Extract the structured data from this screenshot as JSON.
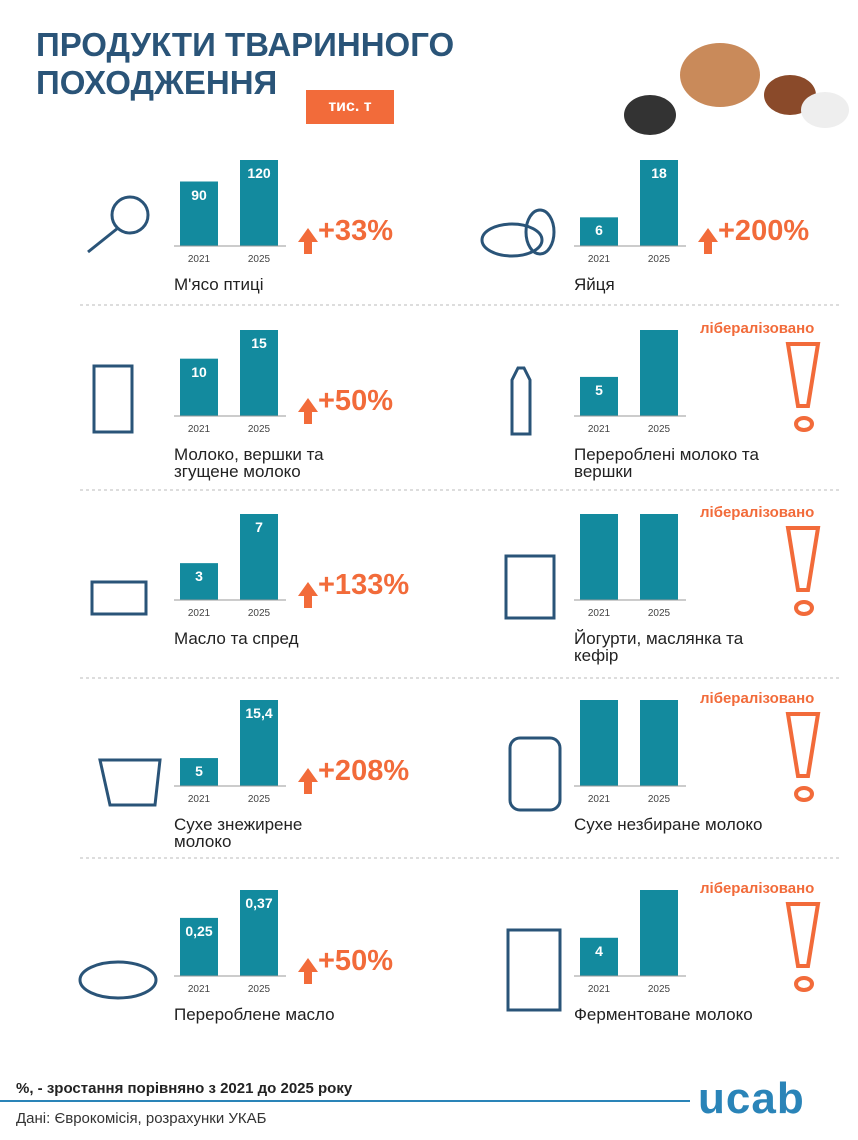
{
  "header": {
    "title": "ПРОДУКТИ ТВАРИННОГО ПОХОДЖЕННЯ",
    "unit": "тис. т"
  },
  "chart_data": [
    {
      "type": "bar",
      "title": "М'ясо птиці",
      "categories": [
        "2021",
        "2025"
      ],
      "values": [
        90,
        120
      ],
      "value_labels": [
        "90",
        "120"
      ],
      "annotation": "+33%",
      "color": "#138a9e"
    },
    {
      "type": "bar",
      "title": "Яйця",
      "categories": [
        "2021",
        "2025"
      ],
      "values": [
        6,
        18
      ],
      "value_labels": [
        "6",
        "18"
      ],
      "annotation": "+200%",
      "color": "#138a9e"
    },
    {
      "type": "bar",
      "title": "Молоко, вершки та згущене молоко",
      "categories": [
        "2021",
        "2025"
      ],
      "values": [
        10,
        15
      ],
      "value_labels": [
        "10",
        "15"
      ],
      "annotation": "+50%",
      "color": "#138a9e"
    },
    {
      "type": "bar",
      "title": "Перероблені молоко та вершки",
      "categories": [
        "2021",
        "2025"
      ],
      "values": [
        5,
        11
      ],
      "value_labels": [
        "5",
        null
      ],
      "annotation": "лібералізовано",
      "color": "#138a9e"
    },
    {
      "type": "bar",
      "title": "Масло та спред",
      "categories": [
        "2021",
        "2025"
      ],
      "values": [
        3,
        7
      ],
      "value_labels": [
        "3",
        "7"
      ],
      "annotation": "+133%",
      "color": "#138a9e"
    },
    {
      "type": "bar",
      "title": "Йогурти, маслянка та кефір",
      "categories": [
        "2021",
        "2025"
      ],
      "values": [
        null,
        null
      ],
      "value_labels": [
        null,
        null
      ],
      "annotation": "лібералізовано",
      "color": "#138a9e"
    },
    {
      "type": "bar",
      "title": "Сухе знежирене молоко",
      "categories": [
        "2021",
        "2025"
      ],
      "values": [
        5,
        15.4
      ],
      "value_labels": [
        "5",
        "15,4"
      ],
      "annotation": "+208%",
      "color": "#138a9e"
    },
    {
      "type": "bar",
      "title": "Сухе незбиране молоко",
      "categories": [
        "2021",
        "2025"
      ],
      "values": [
        null,
        null
      ],
      "value_labels": [
        null,
        null
      ],
      "annotation": "лібералізовано",
      "color": "#138a9e"
    },
    {
      "type": "bar",
      "title": "Перероблене масло",
      "categories": [
        "2021",
        "2025"
      ],
      "values": [
        0.25,
        0.37
      ],
      "value_labels": [
        "0,25",
        "0,37"
      ],
      "annotation": "+50%",
      "color": "#138a9e"
    },
    {
      "type": "bar",
      "title": "Ферментоване молоко",
      "categories": [
        "2021",
        "2025"
      ],
      "values": [
        4,
        9
      ],
      "value_labels": [
        "4",
        null
      ],
      "annotation": "лібералізовано",
      "color": "#138a9e"
    }
  ],
  "footer": {
    "note": "%, - зростання порівняно з 2021 до 2025 року",
    "source": "Дані: Єврокомісія, розрахунки УКАБ",
    "logo": "ucab"
  }
}
